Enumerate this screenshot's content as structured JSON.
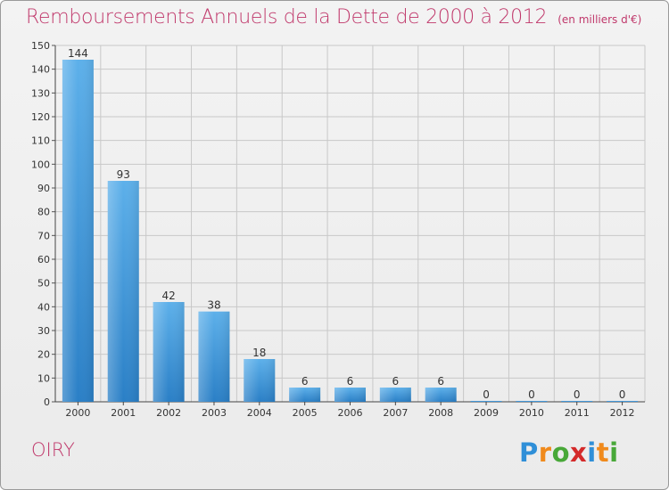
{
  "header": {
    "title": "Remboursements Annuels de la Dette de 2000 à 2012",
    "unit": "(en milliers d'€)"
  },
  "footer": {
    "commune": "OIRY",
    "logo_text": "Proxiti"
  },
  "colors": {
    "title": "#c0386b",
    "bar_light": "#5db0ea",
    "bar_dark": "#2a7fc6",
    "grid": "#c8c8c8",
    "background": "#efefef"
  },
  "chart_data": {
    "type": "bar",
    "title": "Remboursements Annuels de la Dette de 2000 à 2012",
    "xlabel": "",
    "ylabel": "",
    "categories": [
      "2000",
      "2001",
      "2002",
      "2003",
      "2004",
      "2005",
      "2006",
      "2007",
      "2008",
      "2009",
      "2010",
      "2011",
      "2012"
    ],
    "values": [
      144,
      93,
      42,
      38,
      18,
      6,
      6,
      6,
      6,
      0,
      0,
      0,
      0
    ],
    "ylim": [
      0,
      150
    ],
    "yticks": [
      0,
      10,
      20,
      30,
      40,
      50,
      60,
      70,
      80,
      90,
      100,
      110,
      120,
      130,
      140,
      150
    ],
    "grid": true,
    "data_labels": true
  }
}
